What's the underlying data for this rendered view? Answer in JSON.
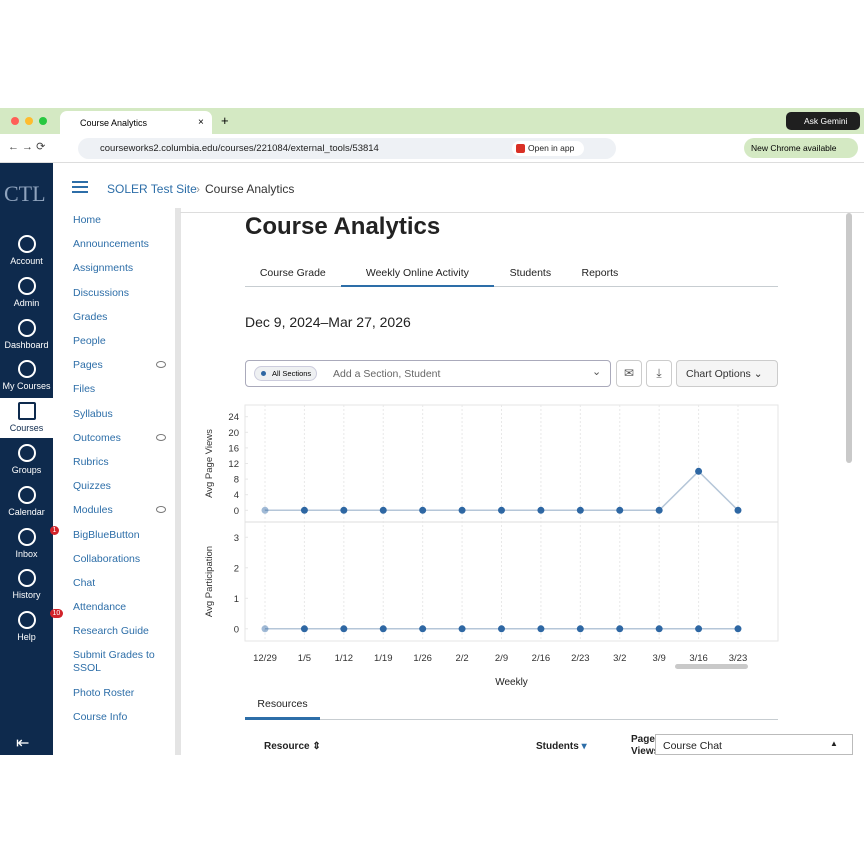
{
  "browser": {
    "tab_title": "Course Analytics",
    "url": "courseworks2.columbia.edu/courses/221084/external_tools/53814",
    "open_in_app": "Open in app",
    "ask_gemini": "Ask Gemini",
    "update": "New Chrome available"
  },
  "global_nav": {
    "logo": "CTL",
    "items": [
      {
        "label": "Account"
      },
      {
        "label": "Admin"
      },
      {
        "label": "Dashboard"
      },
      {
        "label": "My Courses"
      },
      {
        "label": "Courses",
        "active": true
      },
      {
        "label": "Groups"
      },
      {
        "label": "Calendar"
      },
      {
        "label": "Inbox",
        "badge": "1"
      },
      {
        "label": "History"
      },
      {
        "label": "Help",
        "badge": "10"
      }
    ]
  },
  "breadcrumb": [
    "SOLER Test Site",
    "Course Analytics"
  ],
  "course_nav": [
    {
      "label": "Home"
    },
    {
      "label": "Announcements"
    },
    {
      "label": "Assignments"
    },
    {
      "label": "Discussions"
    },
    {
      "label": "Grades"
    },
    {
      "label": "People"
    },
    {
      "label": "Pages",
      "hidden": true
    },
    {
      "label": "Files"
    },
    {
      "label": "Syllabus"
    },
    {
      "label": "Outcomes",
      "hidden": true
    },
    {
      "label": "Rubrics"
    },
    {
      "label": "Quizzes"
    },
    {
      "label": "Modules",
      "hidden": true
    },
    {
      "label": "BigBlueButton"
    },
    {
      "label": "Collaborations"
    },
    {
      "label": "Chat"
    },
    {
      "label": "Attendance"
    },
    {
      "label": "Research Guide"
    },
    {
      "label": "Submit Grades to SSOL"
    },
    {
      "label": "Photo Roster"
    },
    {
      "label": "Course Info"
    }
  ],
  "page": {
    "title": "Course Analytics",
    "tabs": [
      {
        "label": "Course Grade"
      },
      {
        "label": "Weekly Online Activity",
        "active": true
      },
      {
        "label": "Students"
      },
      {
        "label": "Reports"
      }
    ],
    "date_range": "Dec 9, 2024–Mar 27, 2026",
    "filter_pill": "All Sections",
    "filter_placeholder": "Add a Section, Student",
    "chart_options": "Chart Options",
    "section_tab": "Resources",
    "table_headers": [
      "Resource",
      "Students",
      "Page Views"
    ],
    "chat": "Course Chat"
  },
  "chart_data": [
    {
      "type": "line",
      "y_label": "Avg Page Views",
      "values": [
        0,
        0,
        0,
        0,
        0,
        0,
        0,
        0,
        0,
        0,
        0,
        10,
        0
      ],
      "ylim": [
        -3,
        27
      ],
      "yticks": [
        0,
        4,
        8,
        12,
        16,
        20,
        24
      ],
      "color": "#2e67a3",
      "line_color": "#b5c6d8",
      "grid": true
    },
    {
      "type": "line",
      "y_label": "Avg Participation",
      "categories": [
        "12/29",
        "1/5",
        "1/12",
        "1/19",
        "1/26",
        "2/2",
        "2/9",
        "2/16",
        "2/23",
        "3/2",
        "3/9",
        "3/16",
        "3/23"
      ],
      "x_label": "Weekly",
      "values": [
        0,
        0,
        0,
        0,
        0,
        0,
        0,
        0,
        0,
        0,
        0,
        0,
        0
      ],
      "ylim": [
        -0.4,
        3.5
      ],
      "yticks": [
        0,
        1,
        2,
        3
      ],
      "color": "#2e67a3",
      "line_color": "#b5c6d8",
      "grid": true
    }
  ]
}
